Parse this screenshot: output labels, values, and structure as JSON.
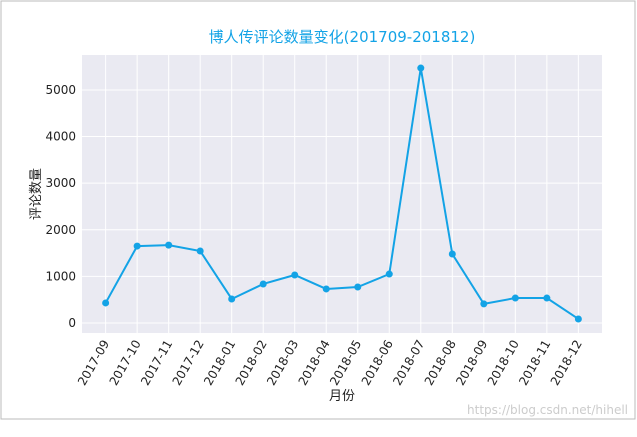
{
  "chart_data": {
    "type": "line",
    "title": "博人传评论数量变化(201709-201812)",
    "x_label": "月份",
    "y_label": "评论数量",
    "categories": [
      "2017-09",
      "2017-10",
      "2017-11",
      "2017-12",
      "2018-01",
      "2018-02",
      "2018-03",
      "2018-04",
      "2018-05",
      "2018-06",
      "2018-07",
      "2018-08",
      "2018-09",
      "2018-10",
      "2018-11",
      "2018-12"
    ],
    "series": [
      {
        "name": "评论数量",
        "color": "#13a3e6",
        "values": [
          430,
          1650,
          1670,
          1545,
          515,
          837,
          1030,
          730,
          772,
          1050,
          5470,
          1480,
          410,
          535,
          535,
          86
        ]
      }
    ],
    "ylim": [
      -215,
      5750
    ],
    "yticks": [
      0,
      1000,
      2000,
      3000,
      4000,
      5000
    ],
    "grid": true,
    "watermark": "https://blog.csdn.net/hihell"
  }
}
